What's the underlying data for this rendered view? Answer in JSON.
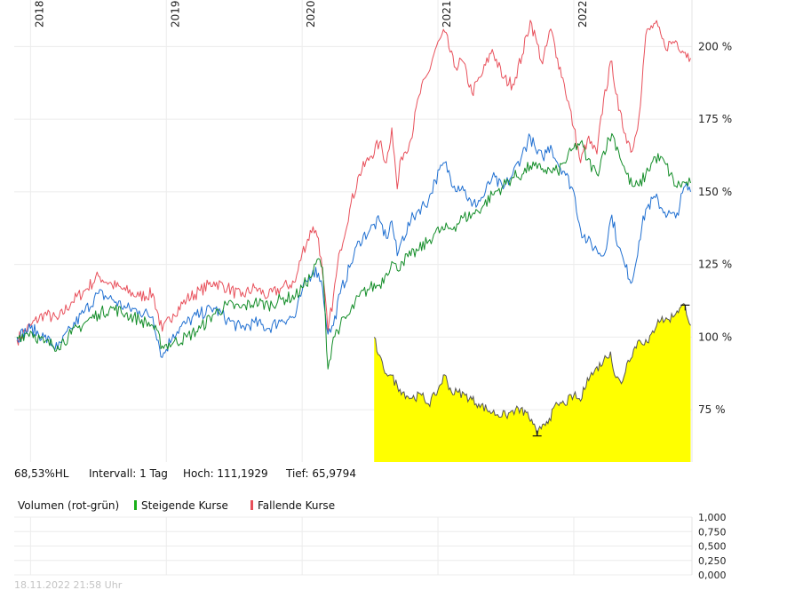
{
  "chart_data": [
    {
      "type": "line",
      "title": "",
      "xlabel": "",
      "ylabel": "",
      "x_ticks": [
        "2018",
        "2019",
        "2020",
        "2021",
        "2022"
      ],
      "y_ticks": [
        "75 %",
        "100 %",
        "125 %",
        "150 %",
        "175 %",
        "200 %"
      ],
      "y_tick_values": [
        75,
        100,
        125,
        150,
        175,
        200
      ],
      "ylim": [
        57,
        216
      ],
      "xlim": [
        2017.88,
        2022.87
      ],
      "grid": true,
      "series": [
        {
          "color": "#e8505b",
          "points": [
            [
              2017.9,
              99
            ],
            [
              2018.0,
              104
            ],
            [
              2018.1,
              108
            ],
            [
              2018.2,
              106
            ],
            [
              2018.3,
              112
            ],
            [
              2018.4,
              116
            ],
            [
              2018.5,
              121
            ],
            [
              2018.6,
              118
            ],
            [
              2018.7,
              116
            ],
            [
              2018.8,
              114
            ],
            [
              2018.9,
              115
            ],
            [
              2018.97,
              102
            ],
            [
              2019.05,
              108
            ],
            [
              2019.15,
              113
            ],
            [
              2019.25,
              116
            ],
            [
              2019.35,
              119
            ],
            [
              2019.45,
              117
            ],
            [
              2019.55,
              114
            ],
            [
              2019.65,
              117
            ],
            [
              2019.75,
              114
            ],
            [
              2019.85,
              117
            ],
            [
              2019.95,
              119
            ],
            [
              2020.0,
              129
            ],
            [
              2020.08,
              138
            ],
            [
              2020.12,
              134
            ],
            [
              2020.15,
              122
            ],
            [
              2020.19,
              102
            ],
            [
              2020.23,
              114
            ],
            [
              2020.28,
              130
            ],
            [
              2020.35,
              144
            ],
            [
              2020.42,
              156
            ],
            [
              2020.5,
              162
            ],
            [
              2020.57,
              167
            ],
            [
              2020.62,
              160
            ],
            [
              2020.66,
              172
            ],
            [
              2020.7,
              151
            ],
            [
              2020.73,
              162
            ],
            [
              2020.8,
              168
            ],
            [
              2020.86,
              183
            ],
            [
              2020.93,
              191
            ],
            [
              2020.98,
              199
            ],
            [
              2021.05,
              205
            ],
            [
              2021.12,
              193
            ],
            [
              2021.18,
              195
            ],
            [
              2021.25,
              184
            ],
            [
              2021.33,
              191
            ],
            [
              2021.4,
              199
            ],
            [
              2021.48,
              189
            ],
            [
              2021.55,
              187
            ],
            [
              2021.62,
              197
            ],
            [
              2021.68,
              209
            ],
            [
              2021.73,
              201
            ],
            [
              2021.77,
              194
            ],
            [
              2021.83,
              206
            ],
            [
              2021.88,
              196
            ],
            [
              2021.93,
              187
            ],
            [
              2022.0,
              172
            ],
            [
              2022.05,
              160
            ],
            [
              2022.1,
              168
            ],
            [
              2022.17,
              163
            ],
            [
              2022.22,
              182
            ],
            [
              2022.28,
              195
            ],
            [
              2022.33,
              178
            ],
            [
              2022.38,
              170
            ],
            [
              2022.43,
              164
            ],
            [
              2022.48,
              176
            ],
            [
              2022.53,
              204
            ],
            [
              2022.6,
              208
            ],
            [
              2022.67,
              200
            ],
            [
              2022.75,
              202
            ],
            [
              2022.82,
              198
            ],
            [
              2022.86,
              196
            ]
          ]
        },
        {
          "color": "#1f6fd1",
          "points": [
            [
              2017.9,
              100
            ],
            [
              2018.0,
              103
            ],
            [
              2018.1,
              100
            ],
            [
              2018.2,
              96
            ],
            [
              2018.3,
              103
            ],
            [
              2018.4,
              109
            ],
            [
              2018.5,
              115
            ],
            [
              2018.6,
              113
            ],
            [
              2018.7,
              110
            ],
            [
              2018.8,
              109
            ],
            [
              2018.9,
              107
            ],
            [
              2018.97,
              93
            ],
            [
              2019.05,
              101
            ],
            [
              2019.15,
              105
            ],
            [
              2019.25,
              108
            ],
            [
              2019.35,
              110
            ],
            [
              2019.45,
              106
            ],
            [
              2019.55,
              103
            ],
            [
              2019.65,
              105
            ],
            [
              2019.75,
              103
            ],
            [
              2019.85,
              106
            ],
            [
              2019.95,
              107
            ],
            [
              2020.0,
              116
            ],
            [
              2020.08,
              123
            ],
            [
              2020.12,
              122
            ],
            [
              2020.15,
              117
            ],
            [
              2020.19,
              101
            ],
            [
              2020.23,
              104
            ],
            [
              2020.28,
              115
            ],
            [
              2020.35,
              124
            ],
            [
              2020.42,
              133
            ],
            [
              2020.5,
              137
            ],
            [
              2020.57,
              140
            ],
            [
              2020.62,
              134
            ],
            [
              2020.66,
              140
            ],
            [
              2020.7,
              128
            ],
            [
              2020.73,
              133
            ],
            [
              2020.8,
              140
            ],
            [
              2020.86,
              144
            ],
            [
              2020.93,
              147
            ],
            [
              2020.98,
              154
            ],
            [
              2021.05,
              160
            ],
            [
              2021.12,
              152
            ],
            [
              2021.18,
              152
            ],
            [
              2021.25,
              145
            ],
            [
              2021.33,
              148
            ],
            [
              2021.4,
              155
            ],
            [
              2021.48,
              151
            ],
            [
              2021.55,
              156
            ],
            [
              2021.62,
              163
            ],
            [
              2021.68,
              169
            ],
            [
              2021.73,
              163
            ],
            [
              2021.77,
              162
            ],
            [
              2021.83,
              166
            ],
            [
              2021.88,
              160
            ],
            [
              2021.93,
              157
            ],
            [
              2022.0,
              150
            ],
            [
              2022.05,
              137
            ],
            [
              2022.1,
              133
            ],
            [
              2022.17,
              130
            ],
            [
              2022.22,
              128
            ],
            [
              2022.28,
              142
            ],
            [
              2022.33,
              131
            ],
            [
              2022.38,
              124
            ],
            [
              2022.43,
              119
            ],
            [
              2022.48,
              133
            ],
            [
              2022.53,
              144
            ],
            [
              2022.6,
              148
            ],
            [
              2022.67,
              143
            ],
            [
              2022.75,
              141
            ],
            [
              2022.82,
              152
            ],
            [
              2022.86,
              150
            ]
          ]
        },
        {
          "color": "#138d28",
          "points": [
            [
              2017.9,
              100
            ],
            [
              2018.0,
              102
            ],
            [
              2018.1,
              98
            ],
            [
              2018.2,
              97
            ],
            [
              2018.3,
              101
            ],
            [
              2018.4,
              105
            ],
            [
              2018.5,
              108
            ],
            [
              2018.6,
              110
            ],
            [
              2018.7,
              108
            ],
            [
              2018.8,
              106
            ],
            [
              2018.9,
              104
            ],
            [
              2018.97,
              97
            ],
            [
              2019.05,
              98
            ],
            [
              2019.15,
              100
            ],
            [
              2019.25,
              103
            ],
            [
              2019.35,
              108
            ],
            [
              2019.45,
              111
            ],
            [
              2019.55,
              110
            ],
            [
              2019.65,
              112
            ],
            [
              2019.75,
              111
            ],
            [
              2019.85,
              113
            ],
            [
              2019.95,
              114
            ],
            [
              2020.0,
              117
            ],
            [
              2020.08,
              122
            ],
            [
              2020.12,
              127
            ],
            [
              2020.15,
              124
            ],
            [
              2020.19,
              89
            ],
            [
              2020.23,
              100
            ],
            [
              2020.28,
              104
            ],
            [
              2020.35,
              108
            ],
            [
              2020.42,
              114
            ],
            [
              2020.5,
              117
            ],
            [
              2020.57,
              118
            ],
            [
              2020.62,
              122
            ],
            [
              2020.66,
              126
            ],
            [
              2020.7,
              123
            ],
            [
              2020.73,
              126
            ],
            [
              2020.8,
              128
            ],
            [
              2020.86,
              130
            ],
            [
              2020.93,
              133
            ],
            [
              2020.98,
              136
            ],
            [
              2021.05,
              137
            ],
            [
              2021.12,
              138
            ],
            [
              2021.18,
              141
            ],
            [
              2021.25,
              142
            ],
            [
              2021.33,
              145
            ],
            [
              2021.4,
              149
            ],
            [
              2021.48,
              152
            ],
            [
              2021.55,
              155
            ],
            [
              2021.62,
              156
            ],
            [
              2021.68,
              159
            ],
            [
              2021.73,
              158
            ],
            [
              2021.77,
              158
            ],
            [
              2021.83,
              157
            ],
            [
              2021.88,
              157
            ],
            [
              2021.93,
              160
            ],
            [
              2022.0,
              165
            ],
            [
              2022.05,
              167
            ],
            [
              2022.1,
              161
            ],
            [
              2022.17,
              156
            ],
            [
              2022.22,
              164
            ],
            [
              2022.28,
              170
            ],
            [
              2022.33,
              164
            ],
            [
              2022.38,
              157
            ],
            [
              2022.43,
              152
            ],
            [
              2022.48,
              152
            ],
            [
              2022.53,
              156
            ],
            [
              2022.6,
              162
            ],
            [
              2022.67,
              160
            ],
            [
              2022.75,
              152
            ],
            [
              2022.82,
              153
            ],
            [
              2022.86,
              153
            ]
          ]
        },
        {
          "type": "area",
          "color": "#555555",
          "fill": "#ffff00",
          "points": [
            [
              2020.53,
              100
            ],
            [
              2020.56,
              94
            ],
            [
              2020.6,
              89
            ],
            [
              2020.65,
              87
            ],
            [
              2020.72,
              82
            ],
            [
              2020.8,
              79
            ],
            [
              2020.88,
              80
            ],
            [
              2020.93,
              77
            ],
            [
              2020.98,
              80
            ],
            [
              2021.05,
              87
            ],
            [
              2021.1,
              81
            ],
            [
              2021.15,
              81
            ],
            [
              2021.2,
              80
            ],
            [
              2021.3,
              77
            ],
            [
              2021.4,
              74
            ],
            [
              2021.5,
              73
            ],
            [
              2021.57,
              75
            ],
            [
              2021.65,
              74
            ],
            [
              2021.7,
              70
            ],
            [
              2021.73,
              66
            ],
            [
              2021.77,
              70
            ],
            [
              2021.82,
              72
            ],
            [
              2021.88,
              77
            ],
            [
              2021.93,
              77
            ],
            [
              2022.0,
              80
            ],
            [
              2022.05,
              78
            ],
            [
              2022.1,
              86
            ],
            [
              2022.15,
              88
            ],
            [
              2022.22,
              92
            ],
            [
              2022.27,
              95
            ],
            [
              2022.3,
              87
            ],
            [
              2022.35,
              84
            ],
            [
              2022.4,
              92
            ],
            [
              2022.48,
              99
            ],
            [
              2022.55,
              98
            ],
            [
              2022.62,
              106
            ],
            [
              2022.7,
              106
            ],
            [
              2022.76,
              109
            ],
            [
              2022.82,
              111
            ],
            [
              2022.86,
              104
            ]
          ]
        }
      ],
      "markers": [
        {
          "x": 2021.73,
          "y": 66,
          "label": "low"
        },
        {
          "x": 2022.82,
          "y": 111,
          "label": "high"
        }
      ]
    },
    {
      "type": "bar",
      "title": "Volumen (rot-grün)",
      "y_ticks": [
        "1,000",
        "0,750",
        "0,500",
        "0,250",
        "0,000"
      ],
      "y_tick_values": [
        1,
        0.75,
        0.5,
        0.25,
        0
      ],
      "ylim": [
        0,
        1
      ],
      "values": []
    }
  ],
  "info": {
    "percent": "68,53%HL",
    "interval": "Intervall: 1 Tag",
    "high": "Hoch: 111,1929",
    "low": "Tief: 65,9794"
  },
  "volume_legend": {
    "title": "Volumen (rot-grün)",
    "rising": "Steigende Kurse",
    "falling": "Fallende Kurse",
    "rising_color": "#19b019",
    "falling_color": "#e8505b"
  },
  "footer": {
    "timestamp": "18.11.2022 21:58 Uhr"
  }
}
